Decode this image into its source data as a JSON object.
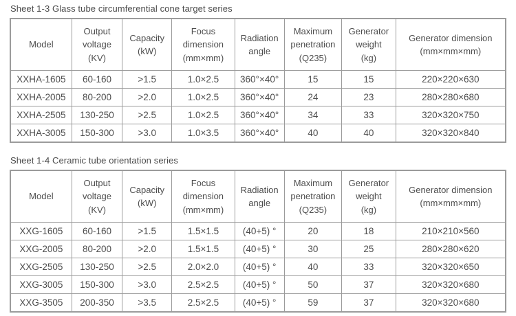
{
  "page": {
    "background": "#ffffff",
    "text_color": "#4d4d4d",
    "border_color": "#9b9b9b"
  },
  "column_widths_percent": [
    12.4,
    10.2,
    10.0,
    12.7,
    10.0,
    11.6,
    10.9,
    22.2
  ],
  "tables": [
    {
      "title": "Sheet 1-3 Glass tube circumferential cone target series",
      "headers": [
        "Model",
        "Output\nvoltage\n(KV)",
        "Capacity\n(kW)",
        "Focus\ndimension\n(mm×mm)",
        "Radiation\nangle",
        "Maximum\npenetration\n(Q235)",
        "Generator\nweight\n(kg)",
        "Generator dimension\n(mm×mm×mm)"
      ],
      "rows": [
        [
          "XXHA-1605",
          "60-160",
          ">1.5",
          "1.0×2.5",
          "360°×40°",
          "15",
          "15",
          "220×220×630"
        ],
        [
          "XXHA-2005",
          "80-200",
          ">2.0",
          "1.0×2.5",
          "360°×40°",
          "24",
          "23",
          "280×280×680"
        ],
        [
          "XXHA-2505",
          "130-250",
          ">2.5",
          "1.0×2.5",
          "360°×40°",
          "34",
          "33",
          "320×320×750"
        ],
        [
          "XXHA-3005",
          "150-300",
          ">3.0",
          "1.0×3.5",
          "360°×40°",
          "40",
          "40",
          "320×320×840"
        ]
      ]
    },
    {
      "title": "Sheet 1-4 Ceramic tube orientation series",
      "headers": [
        "Model",
        "Output\nvoltage\n(KV)",
        "Capacity\n(kW)",
        "Focus\ndimension\n(mm×mm)",
        "Radiation\nangle",
        "Maximum\npenetration\n(Q235)",
        "Generator\nweight\n(kg)",
        "Generator dimension\n(mm×mm×mm)"
      ],
      "rows": [
        [
          "XXG-1605",
          "60-160",
          ">1.5",
          "1.5×1.5",
          "(40+5) °",
          "20",
          "18",
          "210×210×560"
        ],
        [
          "XXG-2005",
          "80-200",
          ">2.0",
          "1.5×1.5",
          "(40+5) °",
          "30",
          "25",
          "280×280×620"
        ],
        [
          "XXG-2505",
          "130-250",
          ">2.5",
          "2.0×2.0",
          "(40+5) °",
          "40",
          "33",
          "320×320×650"
        ],
        [
          "XXG-3005",
          "150-300",
          ">3.0",
          "2.5×2.5",
          "(40+5) °",
          "50",
          "37",
          "320×320×680"
        ],
        [
          "XXG-3505",
          "200-350",
          ">3.5",
          "2.5×2.5",
          "(40+5) °",
          "59",
          "37",
          "320×320×680"
        ]
      ]
    }
  ]
}
